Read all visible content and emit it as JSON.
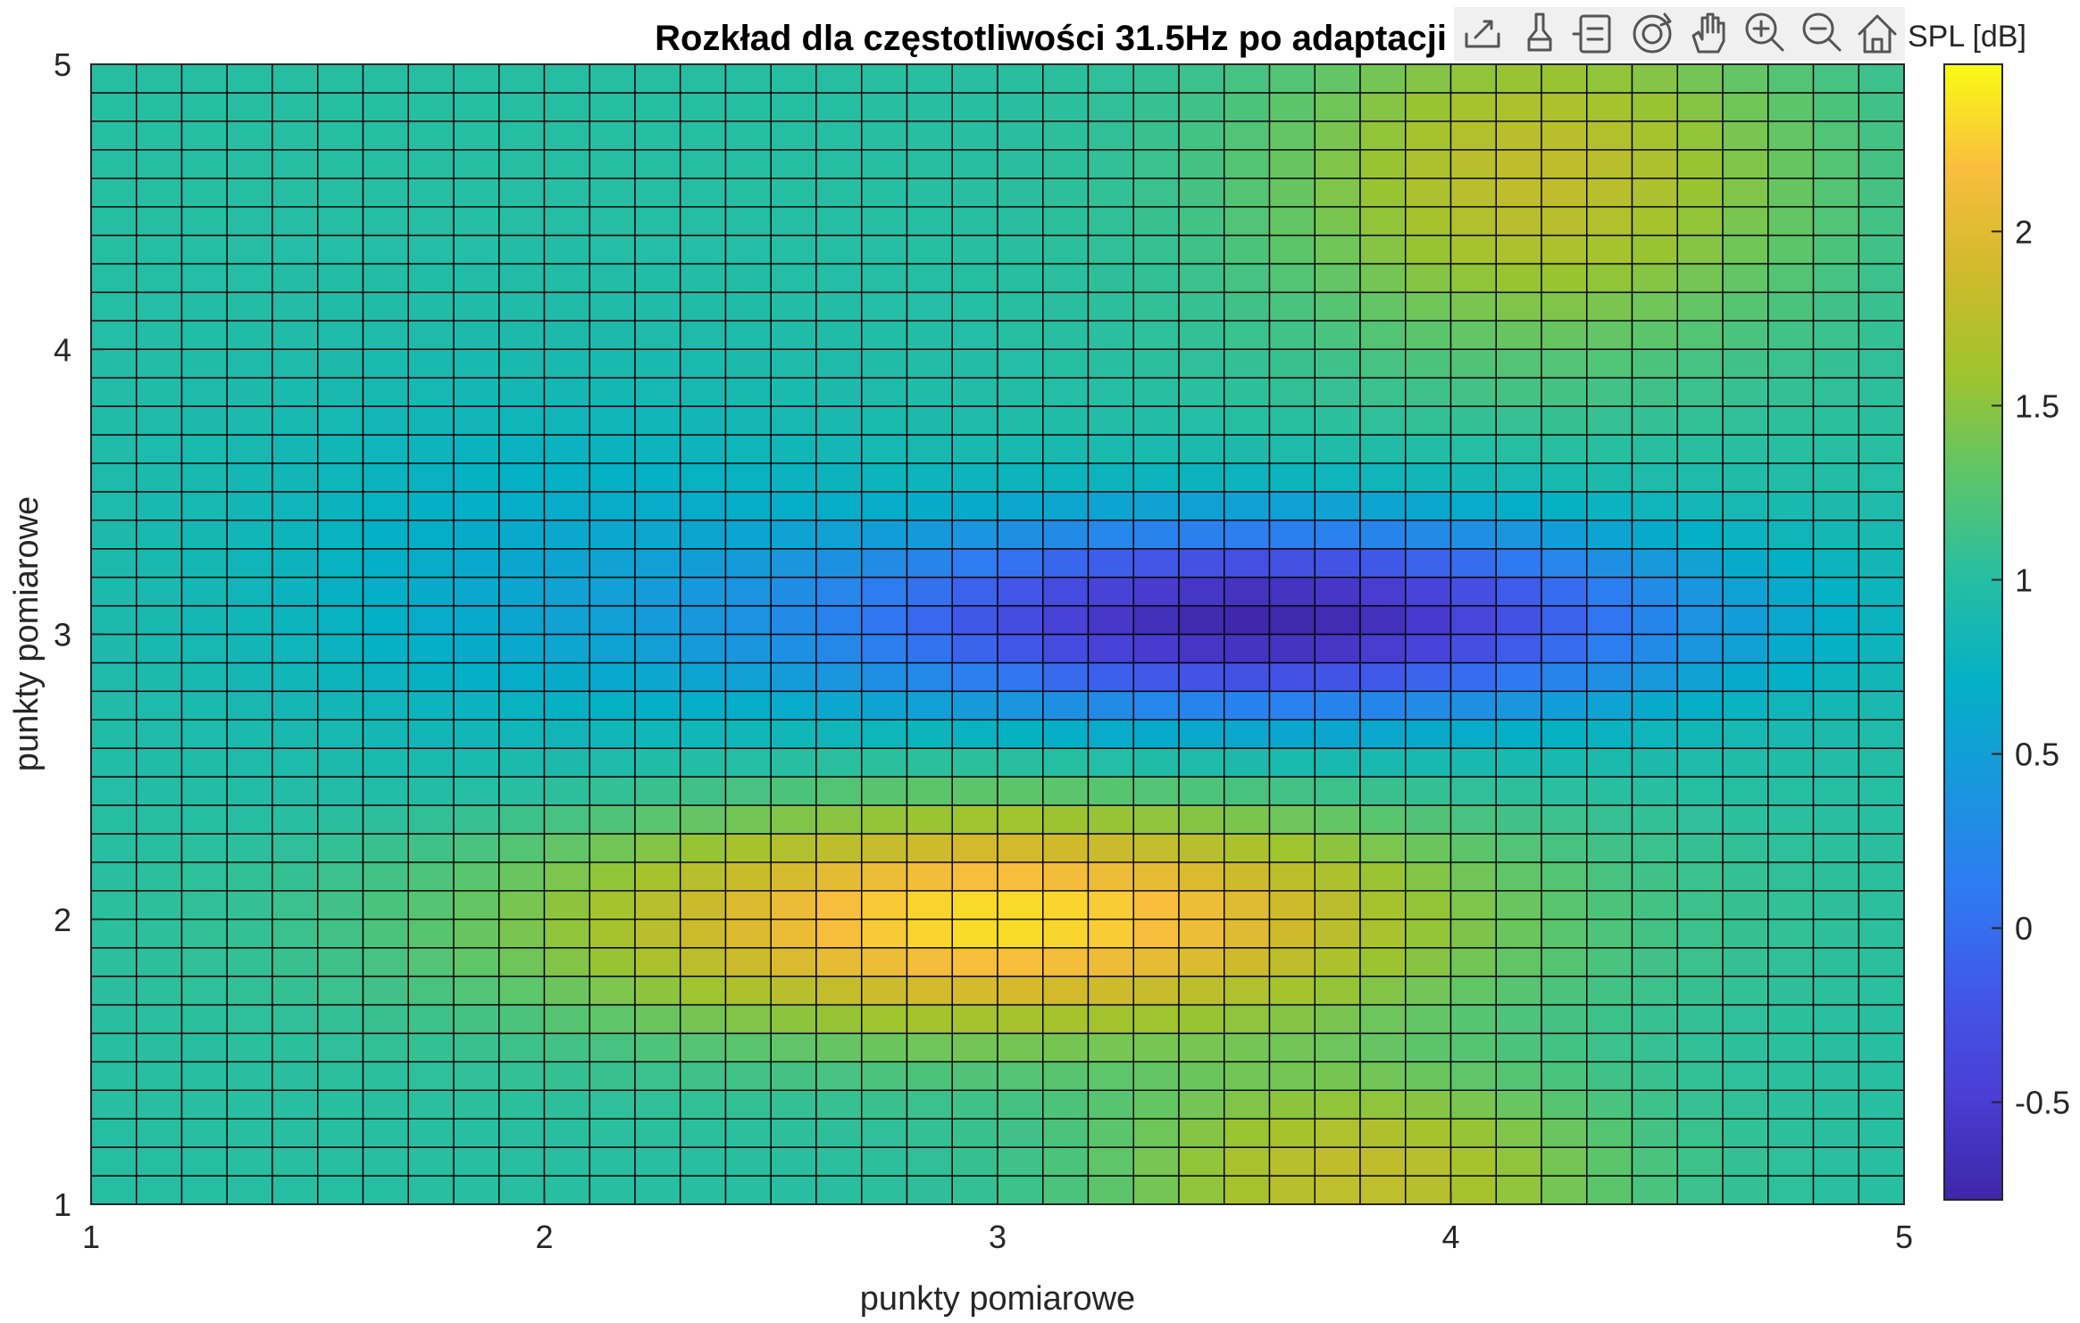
{
  "chart_data": {
    "type": "heatmap",
    "title": "Rozkład dla częstotliwości 31.5Hz po adaptacji",
    "xlabel": "punkty pomiarowe",
    "ylabel": "punkty pomiarowe",
    "x_range": [
      1,
      5
    ],
    "y_range": [
      1,
      5
    ],
    "grid_columns": 40,
    "grid_rows": 40,
    "x_ticks": [
      "1",
      "2",
      "3",
      "4",
      "5"
    ],
    "y_ticks": [
      "1",
      "2",
      "3",
      "4",
      "5"
    ],
    "colorbar": {
      "label": "SPL [dB]",
      "range": [
        -0.78,
        2.48
      ],
      "ticks": [
        "-0.5",
        "0",
        "0.5",
        "1",
        "1.5",
        "2"
      ],
      "tick_values": [
        -0.5,
        0,
        0.5,
        1,
        1.5,
        2
      ]
    },
    "colormap": "parula",
    "colormap_stops": [
      "#3e26a8",
      "#4a3ed4",
      "#4157e8",
      "#2e7bf2",
      "#1996de",
      "#03b0c6",
      "#26bea3",
      "#5cc56b",
      "#9fc42d",
      "#d1ba2c",
      "#f9be3d",
      "#f9fb15"
    ],
    "surface_model": {
      "base": 1.0,
      "features": [
        {
          "x": 3.0,
          "y": 2.0,
          "amplitude": 1.35,
          "sigma_x": 1.0,
          "sigma_y": 0.4
        },
        {
          "x": 3.8,
          "y": 1.1,
          "amplitude": 0.8,
          "sigma_x": 0.55,
          "sigma_y": 0.35
        },
        {
          "x": 3.6,
          "y": 3.05,
          "amplitude": -1.75,
          "sigma_x": 0.95,
          "sigma_y": 0.35
        },
        {
          "x": 2.0,
          "y": 3.2,
          "amplitude": -0.35,
          "sigma_x": 0.8,
          "sigma_y": 0.7
        },
        {
          "x": 4.2,
          "y": 4.6,
          "amplitude": 0.8,
          "sigma_x": 0.6,
          "sigma_y": 0.6
        }
      ]
    }
  },
  "toolbar": {
    "icons": [
      "export-icon",
      "brush-icon",
      "datatip-icon",
      "rotate-icon",
      "pan-icon",
      "zoom-in-icon",
      "zoom-out-icon",
      "home-icon"
    ]
  }
}
